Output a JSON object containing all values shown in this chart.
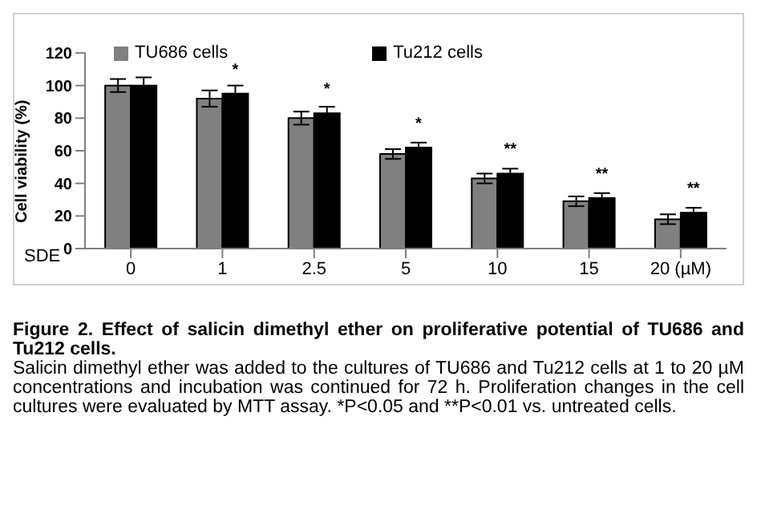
{
  "chart_data": {
    "type": "bar",
    "title": "Figure 2. Effect of salicin dimethyl ether on proliferative potential of TU686 and Tu212 cells.",
    "xlabel": "SDE",
    "ylabel": "Cell viability (%)",
    "categories": [
      "0",
      "1",
      "2.5",
      "5",
      "10",
      "15",
      "20 (µM)"
    ],
    "series": [
      {
        "name": "TU686 cells",
        "color": "#808080",
        "values": [
          100,
          92,
          80,
          58,
          43,
          29,
          18
        ],
        "errors": [
          4,
          5,
          4,
          3,
          3,
          3,
          3
        ]
      },
      {
        "name": "Tu212 cells",
        "color": "#000000",
        "values": [
          100,
          95,
          83,
          62,
          46,
          31,
          22
        ],
        "errors": [
          5,
          5,
          4,
          3,
          3,
          3,
          3
        ]
      }
    ],
    "ylim": [
      0,
      120
    ],
    "yticks": [
      0,
      20,
      40,
      60,
      80,
      100,
      120
    ],
    "grid": false,
    "legend": "top",
    "annotations": [
      {
        "text": "*",
        "x": "1",
        "y": 95
      },
      {
        "text": "*",
        "x": "2.5",
        "y": 83
      },
      {
        "text": "*",
        "x": "5",
        "y": 62
      },
      {
        "text": "**",
        "x": "10",
        "y": 46
      },
      {
        "text": "**",
        "x": "15",
        "y": 31
      },
      {
        "text": "**",
        "x": "20 (µM)",
        "y": 22
      },
      "Salicin dimethyl ether was added to the cultures of TU686 and Tu212 cells at 1 to 20 µM concentrations and incubation was continued for 72 h. Proliferation changes in the cell cultures were evaluated by MTT assay. *P<0.05 and **P<0.01 vs. untreated cells."
    ]
  }
}
